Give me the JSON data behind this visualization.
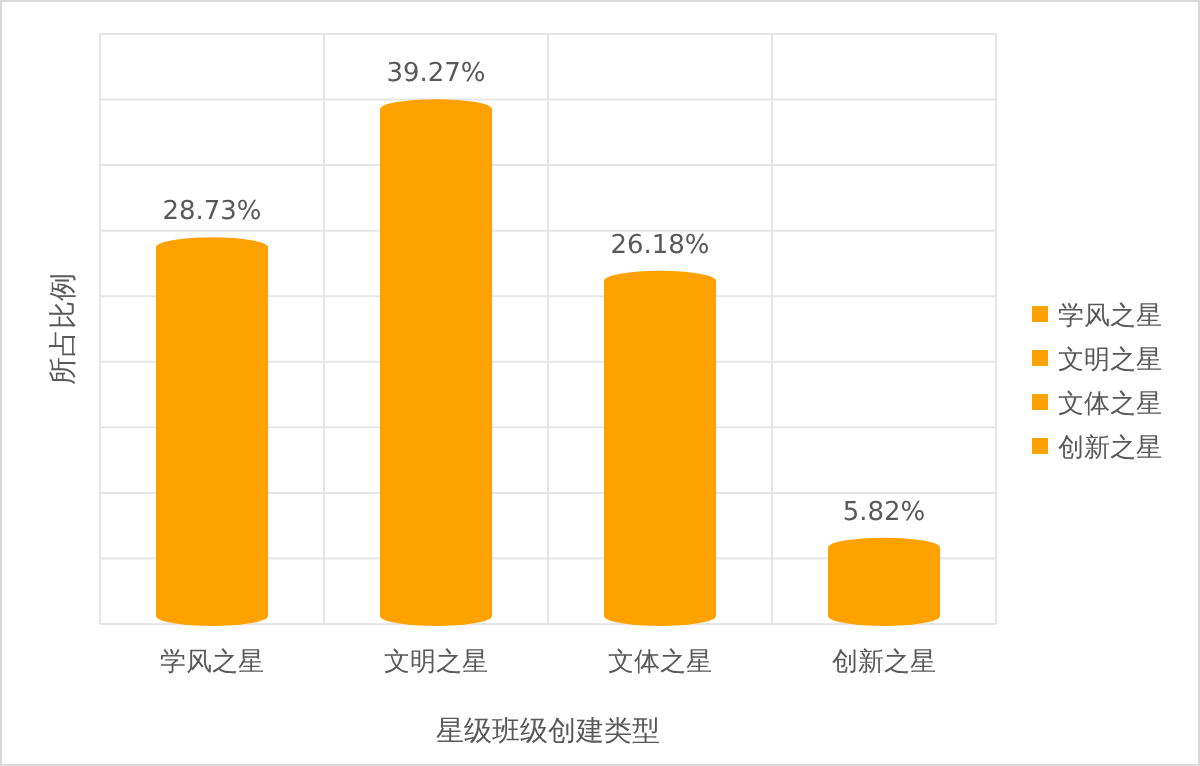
{
  "chart_data": {
    "type": "bar",
    "xlabel": "星级班级创建类型",
    "ylabel": "所占比例",
    "categories": [
      "学风之星",
      "文明之星",
      "文体之星",
      "创新之星"
    ],
    "series": [
      {
        "name": "学风之星",
        "color": "#ffa200",
        "values": [
          28.73,
          null,
          null,
          null
        ],
        "value_labels": [
          "28.73%",
          null,
          null,
          null
        ]
      },
      {
        "name": "文明之星",
        "color": "#ffa200",
        "values": [
          null,
          39.27,
          null,
          null
        ],
        "value_labels": [
          null,
          "39.27%",
          null,
          null
        ]
      },
      {
        "name": "文体之星",
        "color": "#ffa200",
        "values": [
          null,
          null,
          26.18,
          null
        ],
        "value_labels": [
          null,
          null,
          "26.18%",
          null
        ]
      },
      {
        "name": "创新之星",
        "color": "#ffa200",
        "values": [
          null,
          null,
          null,
          5.82
        ],
        "value_labels": [
          null,
          null,
          null,
          "5.82%"
        ]
      }
    ],
    "ylim": [
      0,
      45
    ],
    "yticks": [
      {
        "value": 0,
        "label": null
      },
      {
        "value": 5,
        "label": null
      },
      {
        "value": 10,
        "label": null
      },
      {
        "value": 15,
        "label": null
      },
      {
        "value": 20,
        "label": null
      },
      {
        "value": 25,
        "label": null
      },
      {
        "value": 30,
        "label": null
      },
      {
        "value": 35,
        "label": null
      },
      {
        "value": 40,
        "label": null
      },
      {
        "value": 45,
        "label": null
      }
    ],
    "grid": true,
    "legend": "right"
  }
}
